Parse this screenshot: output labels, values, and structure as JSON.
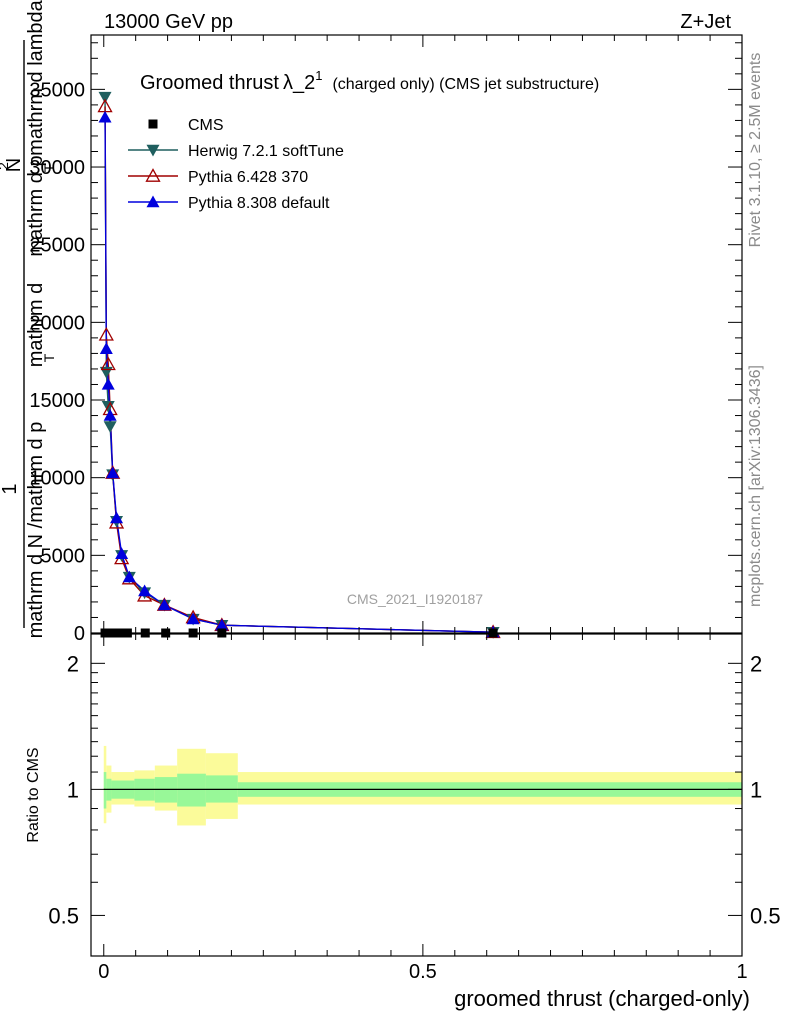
{
  "header": {
    "left": "13000 GeV pp",
    "right": "Z+Jet"
  },
  "side_text": {
    "top": "Rivet 3.1.10, ≥ 2.5M events",
    "bottom": "mcplots.cern.ch [arXiv:1306.3436]"
  },
  "watermark": "CMS_2021_I1920187",
  "chart_data": [
    {
      "type": "line",
      "panel": "main",
      "title": "Groomed thrust",
      "title_symbol": "λ_2",
      "title_sup": "1",
      "subtitle": "(charged only) (CMS jet substructure)",
      "ylabel": "1 / mathrm d N /mathrm d p_T mathrm d^2N / mathrm d p_T mathrm d lambda",
      "ylabel_lines": [
        "1",
        "mathrm d N /mathrm d p",
        "T",
        "mathrm d",
        "2",
        "N",
        "mathrm d p",
        "T",
        "mathrm d lambda"
      ],
      "xlim": [
        -0.02,
        1.0
      ],
      "ylim": [
        0,
        38500
      ],
      "y_ticks": [
        0,
        5000,
        10000,
        15000,
        20000,
        25000,
        30000,
        35000
      ],
      "y_tick_labels": [
        "0",
        "5000",
        "10000",
        "15000",
        "20000",
        "25000",
        "30000",
        "35000"
      ],
      "legend_position": "top-left",
      "series": [
        {
          "name": "CMS",
          "color": "#000000",
          "marker": "square",
          "x": [
            0.002,
            0.007,
            0.012,
            0.018,
            0.026,
            0.037,
            0.065,
            0.097,
            0.14,
            0.185,
            0.61
          ],
          "y": [
            0,
            0,
            0,
            0,
            0,
            0,
            0,
            0,
            0,
            0,
            0
          ]
        },
        {
          "name": "Herwig 7.2.1 softTune",
          "color": "#1f5f5f",
          "marker": "triangle-down",
          "x": [
            0.002,
            0.004,
            0.007,
            0.01,
            0.014,
            0.02,
            0.028,
            0.04,
            0.064,
            0.095,
            0.14,
            0.185,
            0.61
          ],
          "y": [
            34500,
            16800,
            14600,
            13300,
            10200,
            7200,
            5000,
            3600,
            2600,
            1800,
            900,
            500,
            50
          ]
        },
        {
          "name": "Pythia 6.428 370",
          "color": "#a00000",
          "marker": "triangle-up-open",
          "x": [
            0.002,
            0.004,
            0.007,
            0.01,
            0.014,
            0.02,
            0.028,
            0.04,
            0.064,
            0.095,
            0.14,
            0.185,
            0.61
          ],
          "y": [
            33900,
            19200,
            17300,
            14400,
            10300,
            7100,
            4800,
            3500,
            2400,
            1800,
            1000,
            500,
            50
          ]
        },
        {
          "name": "Pythia 8.308 default",
          "color": "#0000dd",
          "marker": "triangle-up",
          "x": [
            0.002,
            0.004,
            0.007,
            0.01,
            0.014,
            0.02,
            0.028,
            0.04,
            0.064,
            0.095,
            0.14,
            0.185,
            0.61
          ],
          "y": [
            33200,
            18300,
            16000,
            14000,
            10300,
            7400,
            5100,
            3600,
            2700,
            1800,
            900,
            500,
            50
          ]
        }
      ]
    },
    {
      "type": "area",
      "panel": "ratio",
      "xlabel": "groomed thrust (charged-only)",
      "ylabel": "Ratio to CMS",
      "xlim": [
        -0.02,
        1.0
      ],
      "ylim": [
        0.4,
        2.35
      ],
      "log_y": true,
      "x_ticks": [
        0,
        0.5,
        1
      ],
      "x_tick_labels": [
        "0",
        "0.5",
        "1"
      ],
      "y_ticks": [
        0.5,
        1,
        2
      ],
      "y_tick_labels": [
        "0.5",
        "1",
        "2"
      ],
      "bins": [
        {
          "x0": 0.0,
          "x1": 0.004,
          "stat_lo": 0.9,
          "stat_hi": 1.1,
          "tot_lo": 0.83,
          "tot_hi": 1.27
        },
        {
          "x0": 0.004,
          "x1": 0.012,
          "stat_lo": 0.94,
          "stat_hi": 1.06,
          "tot_lo": 0.88,
          "tot_hi": 1.14
        },
        {
          "x0": 0.012,
          "x1": 0.048,
          "stat_lo": 0.95,
          "stat_hi": 1.05,
          "tot_lo": 0.92,
          "tot_hi": 1.1
        },
        {
          "x0": 0.048,
          "x1": 0.08,
          "stat_lo": 0.94,
          "stat_hi": 1.06,
          "tot_lo": 0.91,
          "tot_hi": 1.11
        },
        {
          "x0": 0.08,
          "x1": 0.115,
          "stat_lo": 0.93,
          "stat_hi": 1.07,
          "tot_lo": 0.89,
          "tot_hi": 1.14
        },
        {
          "x0": 0.115,
          "x1": 0.16,
          "stat_lo": 0.91,
          "stat_hi": 1.09,
          "tot_lo": 0.82,
          "tot_hi": 1.25
        },
        {
          "x0": 0.16,
          "x1": 0.21,
          "stat_lo": 0.93,
          "stat_hi": 1.08,
          "tot_lo": 0.85,
          "tot_hi": 1.22
        },
        {
          "x0": 0.21,
          "x1": 1.0,
          "stat_lo": 0.96,
          "stat_hi": 1.04,
          "tot_lo": 0.92,
          "tot_hi": 1.1
        }
      ],
      "colors": {
        "stat": "#98f898",
        "tot": "#fbfb9a"
      }
    }
  ]
}
